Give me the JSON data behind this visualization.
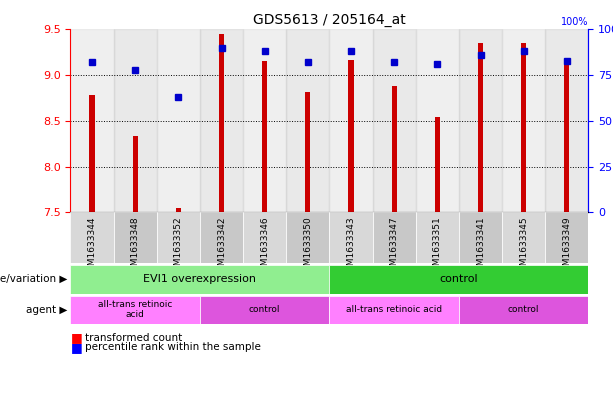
{
  "title": "GDS5613 / 205164_at",
  "samples": [
    "GSM1633344",
    "GSM1633348",
    "GSM1633352",
    "GSM1633342",
    "GSM1633346",
    "GSM1633350",
    "GSM1633343",
    "GSM1633347",
    "GSM1633351",
    "GSM1633341",
    "GSM1633345",
    "GSM1633349"
  ],
  "transformed_counts": [
    8.78,
    8.33,
    7.55,
    9.45,
    9.15,
    8.82,
    9.17,
    8.88,
    8.54,
    9.35,
    9.35,
    9.12
  ],
  "percentile_ranks": [
    82,
    78,
    63,
    90,
    88,
    82,
    88,
    82,
    81,
    86,
    88,
    83
  ],
  "y_min": 7.5,
  "y_max": 9.5,
  "y_ticks": [
    7.5,
    8.0,
    8.5,
    9.0,
    9.5
  ],
  "y2_ticks": [
    0,
    25,
    50,
    75,
    100
  ],
  "bar_color": "#cc0000",
  "dot_color": "#0000cc",
  "genotype_groups": [
    {
      "label": "EVI1 overexpression",
      "start": 0,
      "end": 6,
      "color": "#90ee90"
    },
    {
      "label": "control",
      "start": 6,
      "end": 12,
      "color": "#33cc33"
    }
  ],
  "agent_groups": [
    {
      "label": "all-trans retinoic\nacid",
      "start": 0,
      "end": 3,
      "color": "#ff80ff"
    },
    {
      "label": "control",
      "start": 3,
      "end": 6,
      "color": "#dd55dd"
    },
    {
      "label": "all-trans retinoic acid",
      "start": 6,
      "end": 9,
      "color": "#ff80ff"
    },
    {
      "label": "control",
      "start": 9,
      "end": 12,
      "color": "#dd55dd"
    }
  ],
  "legend_red_label": "transformed count",
  "legend_blue_label": "percentile rank within the sample",
  "genotype_label": "genotype/variation",
  "agent_label": "agent"
}
